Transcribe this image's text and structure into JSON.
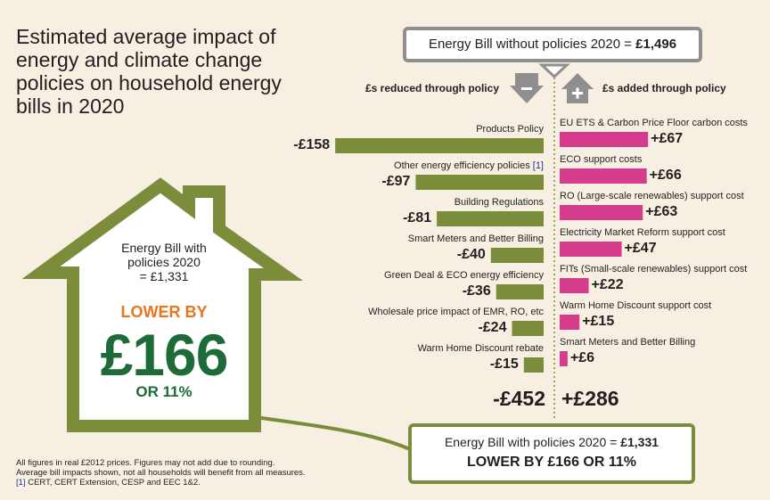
{
  "title": "Estimated average impact of energy and climate change policies on household energy bills in 2020",
  "top_box": {
    "text": "Energy Bill without policies 2020 = ",
    "amount": "£1,496"
  },
  "left_header": "£s reduced through policy",
  "right_header": "£s added through policy",
  "house": {
    "line1": "Energy Bill with",
    "line2": "policies 2020",
    "line3": "= £1,331",
    "lower_by": "LOWER BY",
    "amount": "£166",
    "percent": "OR 11%"
  },
  "totals": {
    "reduced": "-£452",
    "added": "+£286"
  },
  "bottom_box": {
    "line1_text": "Energy Bill with policies 2020 = ",
    "line1_amount": "£1,331",
    "line2": "LOWER BY £166 OR 11%"
  },
  "footnote": {
    "line1": "All figures in real £2012 prices. Figures may not add due to rounding.",
    "line2": "Average bill impacts shown, not all households will benefit from all measures.",
    "line3_ref": "[1]",
    "line3": " CERT, CERT Extension, CESP and EEC 1&2."
  },
  "colors": {
    "reduced": "#7b8c3b",
    "added": "#d63c8c",
    "house": "#7b8c3b",
    "orange": "#e8761e",
    "green_text": "#1e6b3a",
    "background": "#f6efe2"
  },
  "chart_data": {
    "type": "bar",
    "title": "Estimated average impact of energy and climate change policies on household energy bills in 2020",
    "reduced": {
      "name": "£s reduced through policy",
      "categories": [
        "Products Policy",
        "Other energy efficiency policies",
        "Building Regulations",
        "Smart Meters and Better Billing",
        "Green Deal & ECO energy efficiency",
        "Wholesale price impact of EMR, RO, etc",
        "Warm Home Discount rebate"
      ],
      "category_refs": [
        "",
        "[1]",
        "",
        "",
        "",
        "",
        ""
      ],
      "values": [
        -158,
        -97,
        -81,
        -40,
        -36,
        -24,
        -15
      ],
      "labels": [
        "-£158",
        "-£97",
        "-£81",
        "-£40",
        "-£36",
        "-£24",
        "-£15"
      ],
      "total": -452
    },
    "added": {
      "name": "£s added through policy",
      "categories": [
        "EU ETS & Carbon Price Floor carbon costs",
        "ECO support costs",
        "RO (Large-scale renewables) support cost",
        "Electricity Market Reform support cost",
        "FITs (Small-scale renewables) support cost",
        "Warm Home Discount support cost",
        "Smart Meters and Better Billing"
      ],
      "values": [
        67,
        66,
        63,
        47,
        22,
        15,
        6
      ],
      "labels": [
        "+£67",
        "+£66",
        "+£63",
        "+£47",
        "+£22",
        "+£15",
        "+£6"
      ],
      "total": 286
    }
  }
}
